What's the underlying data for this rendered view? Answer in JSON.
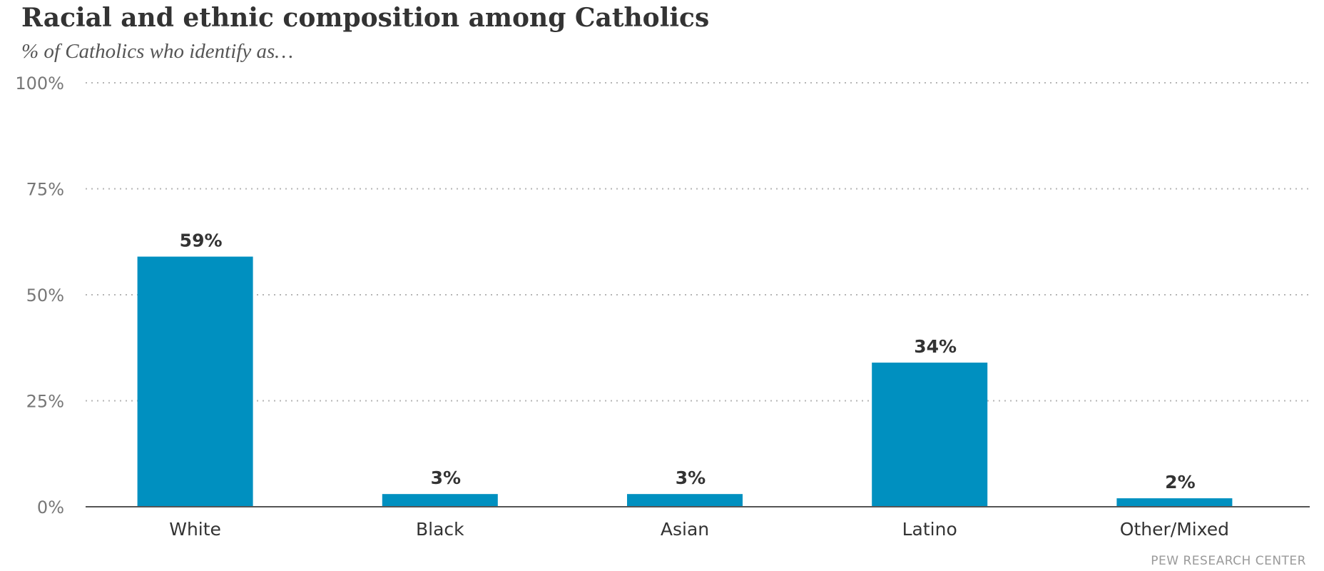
{
  "title": "Racial and ethnic composition among Catholics",
  "subtitle": "% of Catholics who identify as…",
  "source": "PEW RESEARCH CENTER",
  "colors": {
    "bar": "#0090c0",
    "grid": "#b5b5b5",
    "axis": "#555555",
    "tick_text": "#777777",
    "label_text": "#333333"
  },
  "chart_data": {
    "type": "bar",
    "categories": [
      "White",
      "Black",
      "Asian",
      "Latino",
      "Other/Mixed"
    ],
    "values": [
      59,
      3,
      3,
      34,
      2
    ],
    "data_labels": [
      "59%",
      "3%",
      "3%",
      "34%",
      "2%"
    ],
    "yticks": [
      0,
      25,
      50,
      75,
      100
    ],
    "ytick_labels": [
      "0%",
      "25%",
      "50%",
      "75%",
      "100%"
    ],
    "ylim": [
      0,
      100
    ],
    "grid": true,
    "legend": false
  }
}
